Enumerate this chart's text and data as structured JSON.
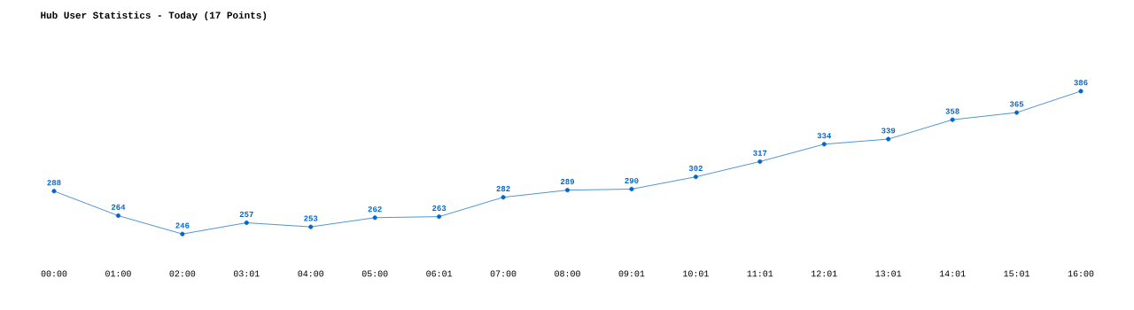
{
  "chart_data": {
    "type": "line",
    "title": "Hub User Statistics - Today (17 Points)",
    "categories": [
      "00:00",
      "01:00",
      "02:00",
      "03:01",
      "04:00",
      "05:00",
      "06:01",
      "07:00",
      "08:00",
      "09:01",
      "10:01",
      "11:01",
      "12:01",
      "13:01",
      "14:01",
      "15:01",
      "16:00"
    ],
    "values": [
      288,
      264,
      246,
      257,
      253,
      262,
      263,
      282,
      289,
      290,
      302,
      317,
      334,
      339,
      358,
      365,
      386
    ],
    "color": "#0066cc",
    "marker": "circle",
    "line_style": "solid",
    "data_labels": true
  }
}
